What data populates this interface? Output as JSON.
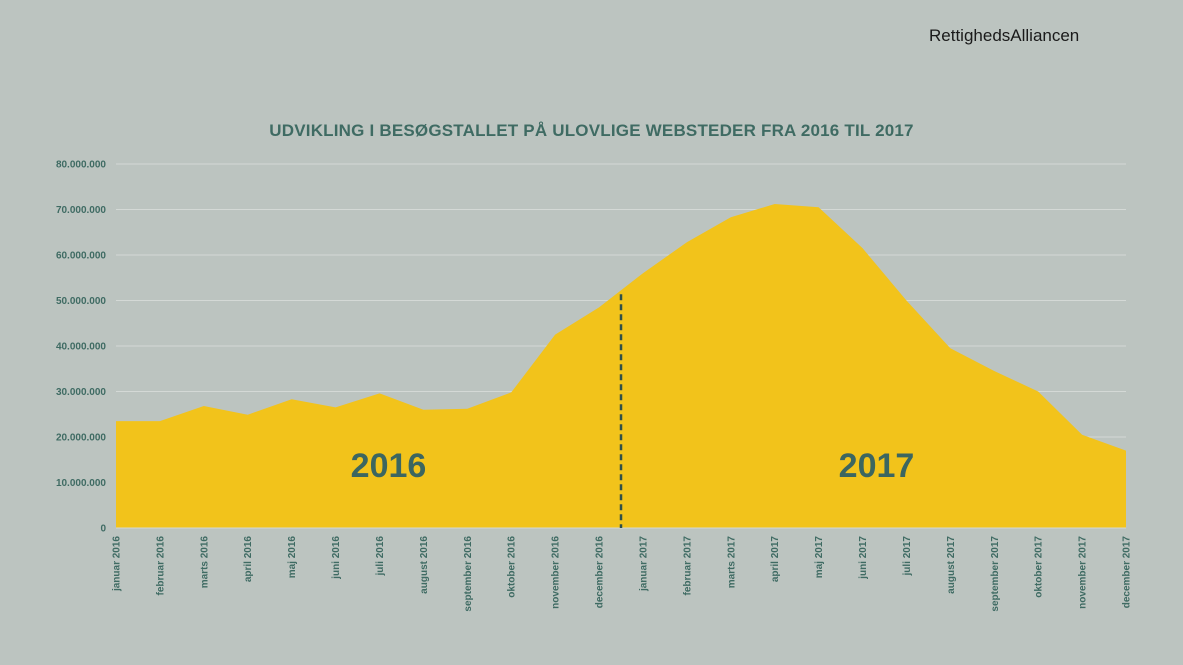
{
  "brand": "RettighedsAlliancen",
  "chart_data": {
    "type": "area",
    "title": "UDVIKLING I BESØGSTALLET PÅ ULOVLIGE WEBSTEDER FRA 2016 TIL 2017",
    "xlabel": "",
    "ylabel": "",
    "ylim": [
      0,
      80000000
    ],
    "yticks": [
      0,
      10000000,
      20000000,
      30000000,
      40000000,
      50000000,
      60000000,
      70000000,
      80000000
    ],
    "ytick_labels": [
      "0",
      "10.000.000",
      "20.000.000",
      "30.000.000",
      "40.000.000",
      "50.000.000",
      "60.000.000",
      "70.000.000",
      "80.000.000"
    ],
    "grid": true,
    "categories": [
      "januar 2016",
      "februar 2016",
      "marts 2016",
      "april 2016",
      "maj 2016",
      "juni 2016",
      "juli 2016",
      "august 2016",
      "september 2016",
      "oktober 2016",
      "november 2016",
      "december 2016",
      "januar 2017",
      "februar 2017",
      "marts 2017",
      "april 2017",
      "maj 2017",
      "juni 2017",
      "juli 2017",
      "august 2017",
      "september 2017",
      "oktober 2017",
      "november 2017",
      "december 2017"
    ],
    "values": [
      23500000,
      23500000,
      26800000,
      24900000,
      28300000,
      26500000,
      29600000,
      26000000,
      26200000,
      29800000,
      42500000,
      48500000,
      56000000,
      62800000,
      68300000,
      71200000,
      70500000,
      61500000,
      50000000,
      39500000,
      34500000,
      30000000,
      20500000,
      17000000
    ],
    "series_color": "#f2c31b",
    "annotations": [
      {
        "text": "2016",
        "position": "left"
      },
      {
        "text": "2017",
        "position": "right"
      }
    ],
    "divider_after_category": "december 2016"
  }
}
